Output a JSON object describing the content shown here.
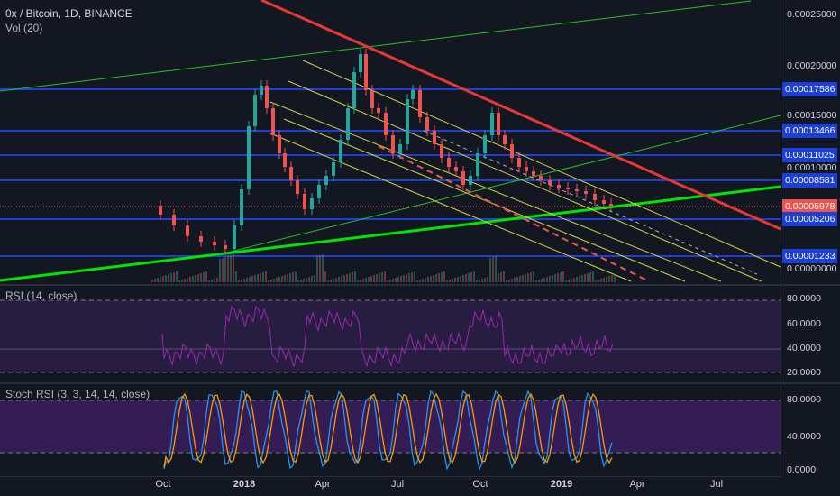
{
  "symbol": {
    "title": "0x / Bitcoin, 1D, BINANCE",
    "volume_label": "Vol (20)"
  },
  "main_axis": {
    "ticks": [
      "0.00025000",
      "0.00020000",
      "0.00015000",
      "0.00010000",
      "0.00000000"
    ],
    "price_tags": [
      {
        "value": "0.00017586",
        "color": "#1c3fd8"
      },
      {
        "value": "0.00013466",
        "color": "#1c3fd8"
      },
      {
        "value": "0.00011025",
        "color": "#1c3fd8"
      },
      {
        "value": "0.00008581",
        "color": "#1c3fd8"
      },
      {
        "value": "0.00005978",
        "color": "#ef5350"
      },
      {
        "value": "0.00005206",
        "color": "#1c3fd8"
      },
      {
        "value": "0.00001233",
        "color": "#1c3fd8"
      }
    ]
  },
  "rsi": {
    "label": "RSI (14, close)",
    "ticks": [
      "80.0000",
      "60.0000",
      "40.0000",
      "20.0000"
    ],
    "band_color": "#2c1f46",
    "line_color": "#9c27b0"
  },
  "stoch": {
    "label": "Stoch RSI (3, 3, 14, 14, close)",
    "ticks": [
      "80.0000",
      "40.0000",
      "0.0000"
    ],
    "band_color": "#3b1f5e",
    "k_color": "#2196f3",
    "d_color": "#ff9800"
  },
  "time_axis": {
    "labels": [
      {
        "text": "Oct",
        "bold": false
      },
      {
        "text": "2018",
        "bold": true
      },
      {
        "text": "Apr",
        "bold": false
      },
      {
        "text": "Jul",
        "bold": false
      },
      {
        "text": "Oct",
        "bold": false
      },
      {
        "text": "2019",
        "bold": true
      },
      {
        "text": "Apr",
        "bold": false
      },
      {
        "text": "Jul",
        "bold": false
      }
    ]
  },
  "drawing_colors": {
    "horizontal_level": "#1c3fd8",
    "downtrend": "#e53935",
    "uptrend": "#00e600",
    "channel": "#d4d14a",
    "candle_up": "#26a69a",
    "candle_down": "#ef5350"
  }
}
